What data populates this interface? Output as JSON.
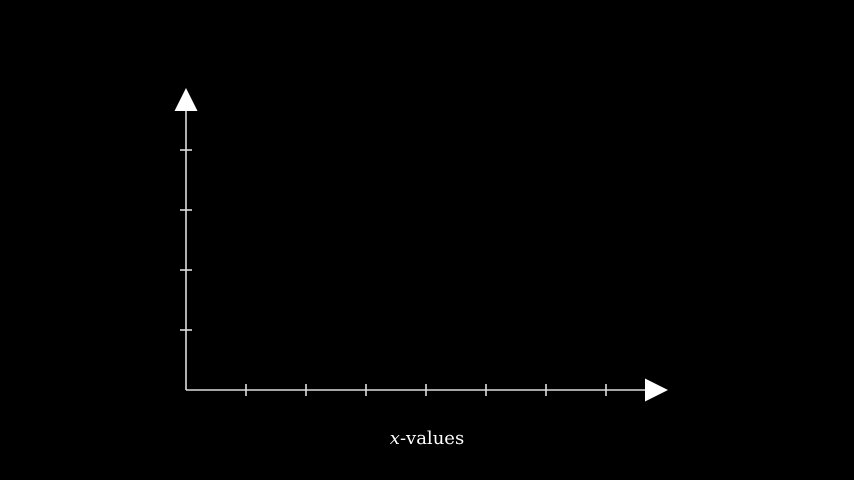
{
  "axes": {
    "x_label_variable": "x",
    "x_label_text": "-values",
    "x_tick_count": 7,
    "y_tick_count": 4,
    "color": "#dcdcdc",
    "arrow_color": "#ffffff",
    "background": "#000000"
  }
}
